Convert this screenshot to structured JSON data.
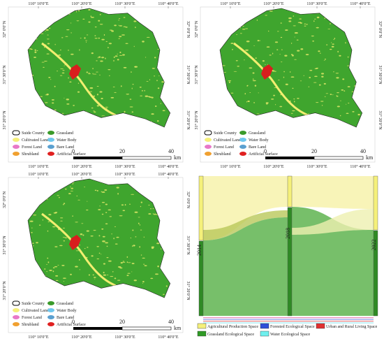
{
  "map_labels": {
    "longitudes": [
      "110° 10′0″E",
      "110° 20′0″E",
      "110° 30′0″E",
      "110° 40′0″E"
    ],
    "latitudes": [
      "32° 0′0″N",
      "31° 30′0″N",
      "31° 20′0″N"
    ]
  },
  "legend": [
    "Suide County",
    "Cultivated Land",
    "Forest Land",
    "Shrubland",
    "Grassland",
    "Water Body",
    "Bare Land",
    "Artificial Surface"
  ],
  "scale": [
    "0",
    "20",
    "40",
    "km"
  ],
  "sankey": {
    "years": [
      "2014",
      "2018",
      "2022"
    ],
    "legend": [
      "Agricultural Production Space",
      "Forested Ecological Space",
      "Urban and Rural Living Space",
      "Grassland Ecological Space",
      "Water Ecological Space"
    ]
  }
}
